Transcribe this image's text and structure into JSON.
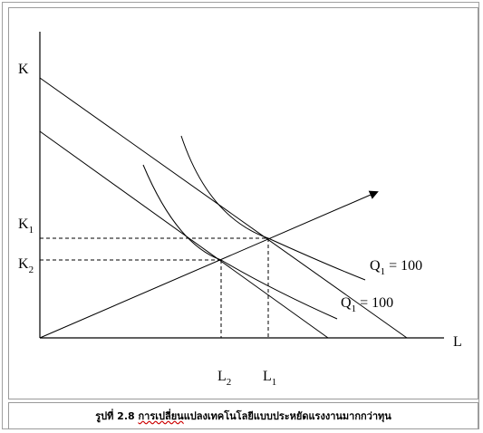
{
  "diagram": {
    "axis_y_label": "K",
    "axis_x_label": "L",
    "k1_label": "K",
    "k1_sub": "1",
    "k2_label": "K",
    "k2_sub": "2",
    "l2_label": "L",
    "l2_sub": "2",
    "l1_label": "L",
    "l1_sub": "1",
    "isoquant_upper": {
      "q": "Q",
      "sub": "1",
      "value": " = 100"
    },
    "isoquant_lower": {
      "q": "Q",
      "sub": "1",
      "value": " = 100"
    }
  },
  "caption": {
    "prefix": "รูปที่ 2.8 ",
    "underlined": "การเปลี่ยน",
    "rest": "แปลงเทคโนโลยีแบบประหยัดแรงงานมากกว่าทุน"
  }
}
